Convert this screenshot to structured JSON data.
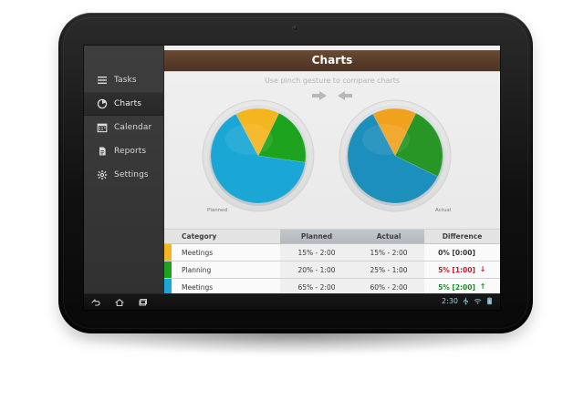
{
  "sidebar": {
    "items": [
      {
        "label": "Tasks",
        "icon": "menu-icon",
        "active": false
      },
      {
        "label": "Charts",
        "icon": "pie-chart-icon",
        "active": true
      },
      {
        "label": "Calendar",
        "icon": "calendar-icon",
        "active": false
      },
      {
        "label": "Reports",
        "icon": "document-icon",
        "active": false
      },
      {
        "label": "Settings",
        "icon": "gear-icon",
        "active": false
      }
    ]
  },
  "header": {
    "title": "Charts"
  },
  "main": {
    "hint": "Use pinch gesture to compare charts"
  },
  "chart_data": [
    {
      "type": "pie",
      "label": "Planned",
      "values": [
        15,
        20,
        65
      ],
      "colors": [
        "#f5b51e",
        "#1ea31e",
        "#1aa7d5"
      ]
    },
    {
      "type": "pie",
      "label": "Actual",
      "values": [
        15,
        25,
        60
      ],
      "colors": [
        "#f0a21e",
        "#279626",
        "#1c8fbc"
      ]
    }
  ],
  "table": {
    "headers": [
      "Category",
      "Planned",
      "Actual",
      "Difference"
    ],
    "rows": [
      {
        "swatch": "#f5b51e",
        "category": "Meetings",
        "planned": "15% - 2:00",
        "actual": "15% - 2:00",
        "difference": "0% [0:00]",
        "difference_color": "#363636",
        "direction_icon": "",
        "direction_color": ""
      },
      {
        "swatch": "#1ea31e",
        "category": "Planning",
        "planned": "20% - 1:00",
        "actual": "25% - 1:00",
        "difference": "5% [1:00]",
        "difference_color": "#d0162a",
        "direction_icon": "arrow-down-icon",
        "direction_color": "#d0162a"
      },
      {
        "swatch": "#1aa7d5",
        "category": "Meetings",
        "planned": "65% - 2:00",
        "actual": "60% - 2:00",
        "difference": "5% [2:00]",
        "difference_color": "#1d8b23",
        "direction_icon": "arrow-up-icon",
        "direction_color": "#1d8b23"
      }
    ]
  },
  "system_bar": {
    "time": "2:30",
    "icons": [
      "back-icon",
      "home-icon",
      "recent-apps-icon",
      "usb-icon",
      "wifi-icon",
      "battery-icon"
    ]
  },
  "colors": {
    "header_brown": "#5b3f2b",
    "sidebar_bg": "#363636",
    "status_blue": "#9ccfe0"
  }
}
